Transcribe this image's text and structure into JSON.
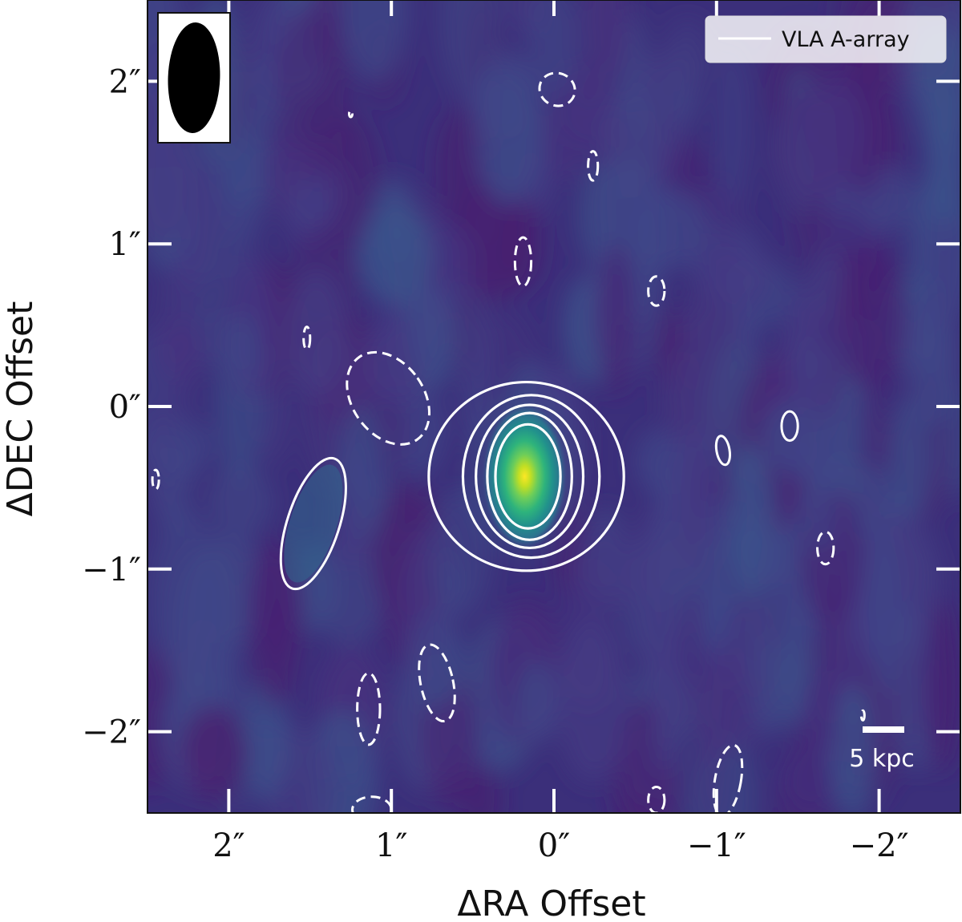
{
  "chart_data": {
    "type": "heatmap",
    "title": "",
    "xlabel": "ΔRA Offset",
    "ylabel": "ΔDEC Offset",
    "xlim": [
      2.5,
      -2.5
    ],
    "ylim": [
      -2.5,
      2.5
    ],
    "x_ticks": [
      2,
      1,
      0,
      -1,
      -2
    ],
    "y_ticks": [
      2,
      1,
      0,
      -1,
      -2
    ],
    "x_tick_labels": [
      "2″",
      "1″",
      "0″",
      "−1″",
      "−2″"
    ],
    "y_tick_labels": [
      "2″",
      "1″",
      "0″",
      "−1″",
      "−2″"
    ],
    "colormap": "viridis",
    "source": {
      "ra": 0.18,
      "dec": -0.43,
      "sigma_ra": 0.1,
      "sigma_dec": 0.19
    },
    "beam": {
      "major_arcsec": 0.68,
      "minor_arcsec": 0.32,
      "pa_deg": 2
    },
    "legend": {
      "label": "VLA A-array",
      "placement": "top-right",
      "line_color": "#ffffff"
    },
    "scale_bar": {
      "label": "5 kpc",
      "placement": "bottom-right"
    },
    "contours": {
      "positive_style": "solid",
      "negative_style": "dashed",
      "color": "#ffffff",
      "main_levels": [
        {
          "ra": 0.17,
          "dec": -0.43,
          "rx": 0.6,
          "ry": 0.58
        },
        {
          "ra": 0.14,
          "dec": -0.43,
          "rx": 0.42,
          "ry": 0.5
        },
        {
          "ra": 0.15,
          "dec": -0.43,
          "rx": 0.33,
          "ry": 0.44
        },
        {
          "ra": 0.15,
          "dec": -0.43,
          "rx": 0.26,
          "ry": 0.39
        },
        {
          "ra": 0.16,
          "dec": -0.43,
          "rx": 0.2,
          "ry": 0.32
        }
      ],
      "positive_blobs": [
        {
          "ra": 1.48,
          "dec": -0.72,
          "rx": 0.16,
          "ry": 0.42,
          "rot": 18
        },
        {
          "ra": -1.04,
          "dec": -0.27,
          "rx": 0.04,
          "ry": 0.09,
          "rot": -10
        },
        {
          "ra": -1.45,
          "dec": -0.12,
          "rx": 0.05,
          "ry": 0.09,
          "rot": 0
        }
      ],
      "negative_blobs": [
        {
          "ra": -0.02,
          "dec": 1.95,
          "rx": 0.11,
          "ry": 0.1,
          "rot": 20
        },
        {
          "ra": -0.24,
          "dec": 1.48,
          "rx": 0.03,
          "ry": 0.09,
          "rot": 0
        },
        {
          "ra": 0.19,
          "dec": 0.89,
          "rx": 0.05,
          "ry": 0.15,
          "rot": 0
        },
        {
          "ra": -0.63,
          "dec": 0.71,
          "rx": 0.05,
          "ry": 0.09,
          "rot": 0
        },
        {
          "ra": 1.52,
          "dec": 0.42,
          "rx": 0.02,
          "ry": 0.07,
          "rot": 0
        },
        {
          "ra": 1.02,
          "dec": 0.05,
          "rx": 0.22,
          "ry": 0.31,
          "rot": -35
        },
        {
          "ra": -1.67,
          "dec": -0.87,
          "rx": 0.05,
          "ry": 0.1,
          "rot": 0
        },
        {
          "ra": 0.72,
          "dec": -1.7,
          "rx": 0.1,
          "ry": 0.24,
          "rot": -12
        },
        {
          "ra": 1.14,
          "dec": -1.86,
          "rx": 0.07,
          "ry": 0.22,
          "rot": 0
        },
        {
          "ra": -1.07,
          "dec": -2.3,
          "rx": 0.08,
          "ry": 0.22,
          "rot": 10
        },
        {
          "ra": -0.63,
          "dec": -2.42,
          "rx": 0.05,
          "ry": 0.08,
          "rot": 0
        },
        {
          "ra": 1.12,
          "dec": -2.48,
          "rx": 0.12,
          "ry": 0.08,
          "rot": 0
        },
        {
          "ra": 2.45,
          "dec": -0.45,
          "rx": 0.02,
          "ry": 0.06,
          "rot": 0
        },
        {
          "ra": -1.9,
          "dec": -1.9,
          "rx": 0.01,
          "ry": 0.03,
          "rot": 0
        },
        {
          "ra": 1.25,
          "dec": 1.8,
          "rx": 0.01,
          "ry": 0.02,
          "rot": 0
        }
      ]
    }
  }
}
